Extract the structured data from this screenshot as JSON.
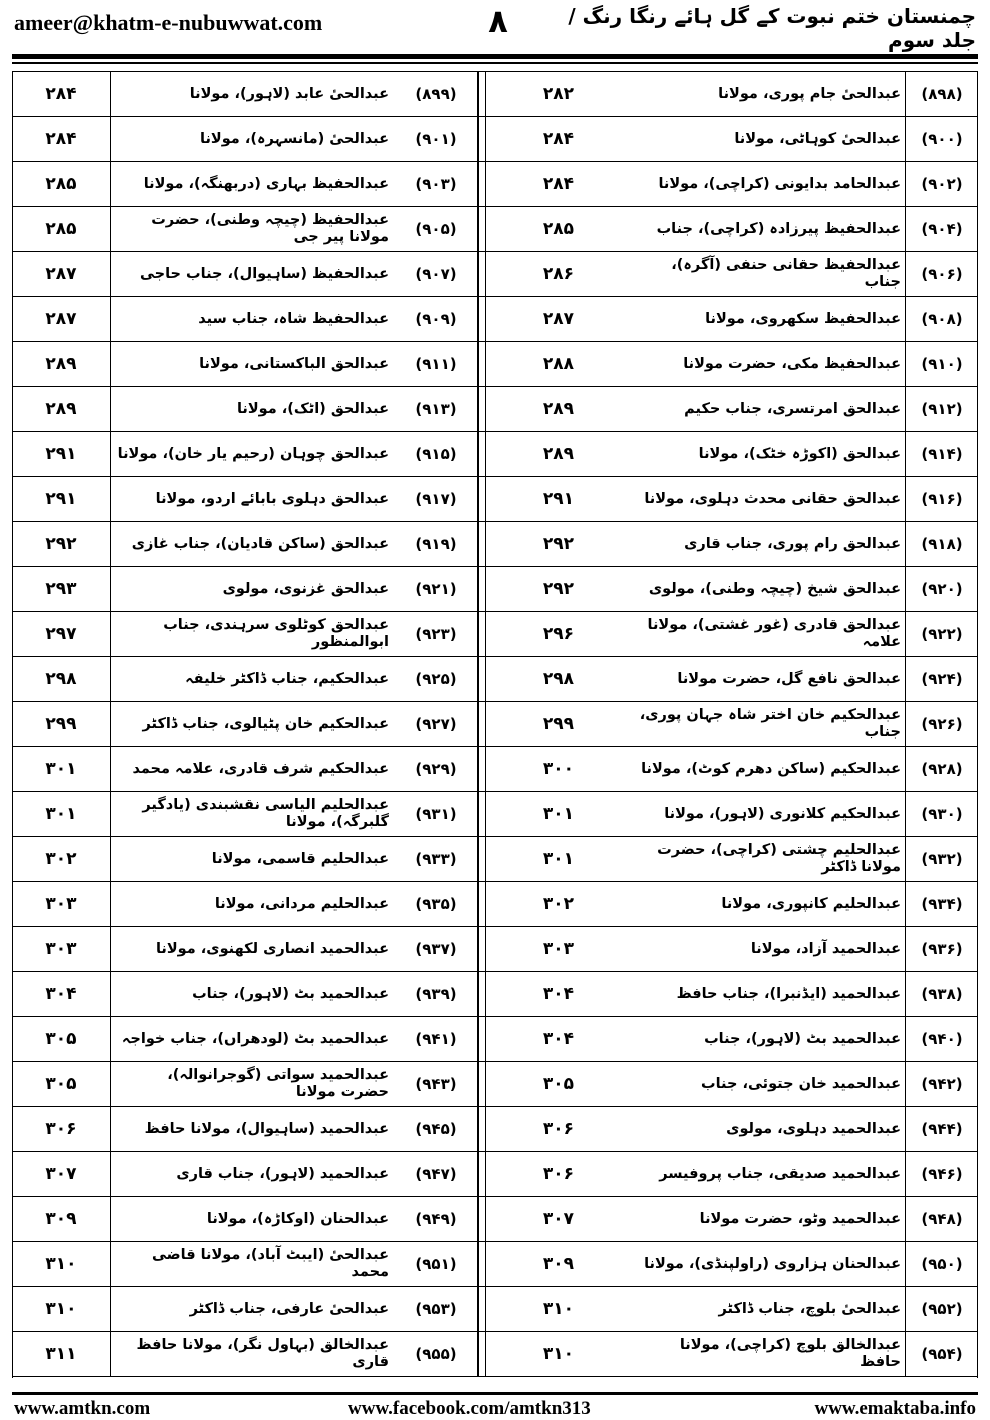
{
  "header": {
    "email": "ameer@khatm-e-nubuwwat.com",
    "page_number": "۸",
    "book_title": "چمنستان ختم نبوت کے گل ہائے رنگا رنگ / جلد سوم"
  },
  "rows": [
    {
      "right": {
        "num": "(۸۹۸)",
        "name": "عبدالحیٔ جام پوری، مولانا",
        "page": "۲۸۲"
      },
      "left": {
        "num": "(۸۹۹)",
        "name": "عبدالحیٔ عابد (لاہور)، مولانا",
        "page": "۲۸۴"
      }
    },
    {
      "right": {
        "num": "(۹۰۰)",
        "name": "عبدالحیٔ کوہاٹی، مولانا",
        "page": "۲۸۴"
      },
      "left": {
        "num": "(۹۰۱)",
        "name": "عبدالحیٔ (مانسہرہ)، مولانا",
        "page": "۲۸۴"
      }
    },
    {
      "right": {
        "num": "(۹۰۲)",
        "name": "عبدالحامد بدایونی (کراچی)، مولانا",
        "page": "۲۸۴"
      },
      "left": {
        "num": "(۹۰۳)",
        "name": "عبدالحفیظ بہاری (دربھنگہ)، مولانا",
        "page": "۲۸۵"
      }
    },
    {
      "right": {
        "num": "(۹۰۴)",
        "name": "عبدالحفیظ پیرزادہ (کراچی)، جناب",
        "page": "۲۸۵"
      },
      "left": {
        "num": "(۹۰۵)",
        "name": "عبدالحفیظ (چیچہ وطنی)، حضرت مولانا پیر جی",
        "page": "۲۸۵"
      }
    },
    {
      "right": {
        "num": "(۹۰۶)",
        "name": "عبدالحفیظ حقانی حنفی (آگرہ)، جناب",
        "page": "۲۸۶"
      },
      "left": {
        "num": "(۹۰۷)",
        "name": "عبدالحفیظ (ساہیوال)، جناب حاجی",
        "page": "۲۸۷"
      }
    },
    {
      "right": {
        "num": "(۹۰۸)",
        "name": "عبدالحفیظ سکھروی، مولانا",
        "page": "۲۸۷"
      },
      "left": {
        "num": "(۹۰۹)",
        "name": "عبدالحفیظ شاہ، جناب سید",
        "page": "۲۸۷"
      }
    },
    {
      "right": {
        "num": "(۹۱۰)",
        "name": "عبدالحفیظ مکی، حضرت مولانا",
        "page": "۲۸۸"
      },
      "left": {
        "num": "(۹۱۱)",
        "name": "عبدالحق الباکستانی، مولانا",
        "page": "۲۸۹"
      }
    },
    {
      "right": {
        "num": "(۹۱۲)",
        "name": "عبدالحق امرتسری، جناب حکیم",
        "page": "۲۸۹"
      },
      "left": {
        "num": "(۹۱۳)",
        "name": "عبدالحق (اٹک)، مولانا",
        "page": "۲۸۹"
      }
    },
    {
      "right": {
        "num": "(۹۱۴)",
        "name": "عبدالحق (اکوڑہ خٹک)، مولانا",
        "page": "۲۸۹"
      },
      "left": {
        "num": "(۹۱۵)",
        "name": "عبدالحق چوہان (رحیم یار خان)، مولانا",
        "page": "۲۹۱"
      }
    },
    {
      "right": {
        "num": "(۹۱۶)",
        "name": "عبدالحق حقانی محدث دہلوی، مولانا",
        "page": "۲۹۱"
      },
      "left": {
        "num": "(۹۱۷)",
        "name": "عبدالحق دہلوی بابائے اردو، مولانا",
        "page": "۲۹۱"
      }
    },
    {
      "right": {
        "num": "(۹۱۸)",
        "name": "عبدالحق رام پوری، جناب قاری",
        "page": "۲۹۲"
      },
      "left": {
        "num": "(۹۱۹)",
        "name": "عبدالحق (ساکن قادیان)، جناب غازی",
        "page": "۲۹۲"
      }
    },
    {
      "right": {
        "num": "(۹۲۰)",
        "name": "عبدالحق شیخ (چیچہ وطنی)، مولوی",
        "page": "۲۹۲"
      },
      "left": {
        "num": "(۹۲۱)",
        "name": "عبدالحق غزنوی، مولوی",
        "page": "۲۹۳"
      }
    },
    {
      "right": {
        "num": "(۹۲۲)",
        "name": "عبدالحق قادری (غور غشتی)، مولانا علامہ",
        "page": "۲۹۶"
      },
      "left": {
        "num": "(۹۲۳)",
        "name": "عبدالحق کوٹلوی سرہندی، جناب ابوالمنظور",
        "page": "۲۹۷"
      }
    },
    {
      "right": {
        "num": "(۹۲۴)",
        "name": "عبدالحق نافع گل، حضرت مولانا",
        "page": "۲۹۸"
      },
      "left": {
        "num": "(۹۲۵)",
        "name": "عبدالحکیم، جناب ڈاکٹر خلیفہ",
        "page": "۲۹۸"
      }
    },
    {
      "right": {
        "num": "(۹۲۶)",
        "name": "عبدالحکیم خان اختر شاہ جہان پوری، جناب",
        "page": "۲۹۹"
      },
      "left": {
        "num": "(۹۲۷)",
        "name": "عبدالحکیم خان پٹیالوی، جناب ڈاکٹر",
        "page": "۲۹۹"
      }
    },
    {
      "right": {
        "num": "(۹۲۸)",
        "name": "عبدالحکیم (ساکن دھرم کوٹ)، مولانا",
        "page": "۳۰۰"
      },
      "left": {
        "num": "(۹۲۹)",
        "name": "عبدالحکیم شرف قادری، علامہ محمد",
        "page": "۳۰۱"
      }
    },
    {
      "right": {
        "num": "(۹۳۰)",
        "name": "عبدالحکیم کلانوری (لاہور)، مولانا",
        "page": "۳۰۱"
      },
      "left": {
        "num": "(۹۳۱)",
        "name": "عبدالحلیم الیاسی نقشبندی (یادگیر گلبرگہ)، مولانا",
        "page": "۳۰۱"
      }
    },
    {
      "right": {
        "num": "(۹۳۲)",
        "name": "عبدالحلیم چشتی (کراچی)، حضرت مولانا ڈاکٹر",
        "page": "۳۰۱"
      },
      "left": {
        "num": "(۹۳۳)",
        "name": "عبدالحلیم قاسمی، مولانا",
        "page": "۳۰۲"
      }
    },
    {
      "right": {
        "num": "(۹۳۴)",
        "name": "عبدالحلیم کانپوری، مولانا",
        "page": "۳۰۲"
      },
      "left": {
        "num": "(۹۳۵)",
        "name": "عبدالحلیم مردانی، مولانا",
        "page": "۳۰۳"
      }
    },
    {
      "right": {
        "num": "(۹۳۶)",
        "name": "عبدالحمید آزاد، مولانا",
        "page": "۳۰۳"
      },
      "left": {
        "num": "(۹۳۷)",
        "name": "عبدالحمید انصاری لکھنوی، مولانا",
        "page": "۳۰۳"
      }
    },
    {
      "right": {
        "num": "(۹۳۸)",
        "name": "عبدالحمید (ایڈنبرا)، جناب حافظ",
        "page": "۳۰۴"
      },
      "left": {
        "num": "(۹۳۹)",
        "name": "عبدالحمید بٹ (لاہور)، جناب",
        "page": "۳۰۴"
      }
    },
    {
      "right": {
        "num": "(۹۴۰)",
        "name": "عبدالحمید بٹ (لاہور)، جناب",
        "page": "۳۰۴"
      },
      "left": {
        "num": "(۹۴۱)",
        "name": "عبدالحمید بٹ (لودھراں)، جناب خواجہ",
        "page": "۳۰۵"
      }
    },
    {
      "right": {
        "num": "(۹۴۲)",
        "name": "عبدالحمید خان جتوئی، جناب",
        "page": "۳۰۵"
      },
      "left": {
        "num": "(۹۴۳)",
        "name": "عبدالحمید سواتی (گوجرانوالہ)، حضرت مولانا",
        "page": "۳۰۵"
      }
    },
    {
      "right": {
        "num": "(۹۴۴)",
        "name": "عبدالحمید دہلوی، مولوی",
        "page": "۳۰۶"
      },
      "left": {
        "num": "(۹۴۵)",
        "name": "عبدالحمید (ساہیوال)، مولانا حافظ",
        "page": "۳۰۶"
      }
    },
    {
      "right": {
        "num": "(۹۴۶)",
        "name": "عبدالحمید صدیقی، جناب پروفیسر",
        "page": "۳۰۶"
      },
      "left": {
        "num": "(۹۴۷)",
        "name": "عبدالحمید (لاہور)، جناب قاری",
        "page": "۳۰۷"
      }
    },
    {
      "right": {
        "num": "(۹۴۸)",
        "name": "عبدالحمید وٹو، حضرت مولانا",
        "page": "۳۰۷"
      },
      "left": {
        "num": "(۹۴۹)",
        "name": "عبدالحنان (اوکاڑہ)، مولانا",
        "page": "۳۰۹"
      }
    },
    {
      "right": {
        "num": "(۹۵۰)",
        "name": "عبدالحنان ہزاروی (راولپنڈی)، مولانا",
        "page": "۳۰۹"
      },
      "left": {
        "num": "(۹۵۱)",
        "name": "عبدالحیٔ (ایبٹ آباد)، مولانا قاضی محمد",
        "page": "۳۱۰"
      }
    },
    {
      "right": {
        "num": "(۹۵۲)",
        "name": "عبدالحیٔ بلوچ، جناب ڈاکٹر",
        "page": "۳۱۰"
      },
      "left": {
        "num": "(۹۵۳)",
        "name": "عبدالحیٔ عارفی، جناب ڈاکٹر",
        "page": "۳۱۰"
      }
    },
    {
      "right": {
        "num": "(۹۵۴)",
        "name": "عبدالخالق بلوچ (کراچی)، مولانا حافظ",
        "page": "۳۱۰"
      },
      "left": {
        "num": "(۹۵۵)",
        "name": "عبدالخالق (بہاول نگر)، مولانا حافظ قاری",
        "page": "۳۱۱"
      }
    }
  ],
  "footer": {
    "left": "www.amtkn.com",
    "center": "www.facebook.com/amtkn313",
    "right": "www.emaktaba.info"
  }
}
